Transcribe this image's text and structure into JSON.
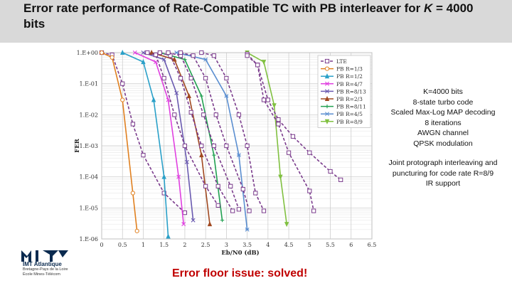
{
  "slide": {
    "title_prefix": "Error rate performance of Rate-Compatible TC with PB interleaver for ",
    "title_var": "K",
    "title_suffix": " = 4000 bits",
    "footer_note": "Error floor issue: solved!"
  },
  "info_block_1": [
    "K=4000 bits",
    "8-state turbo code",
    "Scaled Max-Log MAP decoding",
    "8 iterations",
    "AWGN channel",
    "QPSK modulation"
  ],
  "info_block_2": [
    "Joint protograph interleaving and",
    "puncturing for code rate R=8/9",
    "IR support"
  ],
  "logo": {
    "name": "IMT Atlantique",
    "subtitle_lines": [
      "Bretagne-Pays de la Loire",
      "École Mines-Télécom"
    ],
    "color": "#0a2a4f"
  },
  "chart_data": {
    "type": "line",
    "title": "",
    "xlabel": "Eb/N0 (dB)",
    "ylabel": "FER",
    "xlim": [
      0,
      6.5
    ],
    "ylim": [
      1e-06,
      1
    ],
    "yscale": "log",
    "grid": true,
    "legend_position": "top-right",
    "x_ticks": [
      0,
      0.5,
      1,
      1.5,
      2,
      2.5,
      3,
      3.5,
      4,
      4.5,
      5,
      5.5,
      6,
      6.5
    ],
    "x_tick_labels": [
      "0",
      "0.5",
      "1",
      "1.5",
      "2",
      "2.5",
      "3",
      "3.5",
      "4",
      "4.5",
      "5",
      "5.5",
      "6",
      "6.5"
    ],
    "y_ticks": [
      1,
      0.1,
      0.01,
      0.001,
      0.0001,
      1e-05,
      1e-06
    ],
    "y_tick_labels": [
      "1.E+00",
      "1.E-01",
      "1.E-02",
      "1.E-03",
      "1.E-04",
      "1.E-05",
      "1.E-06"
    ],
    "series": [
      {
        "name": "LTE",
        "color": "#7a3b8c",
        "marker": "square",
        "dash": true,
        "points": [
          [
            0,
            1
          ],
          [
            0.25,
            0.85
          ],
          [
            0.5,
            0.1
          ],
          [
            0.75,
            0.005
          ],
          [
            1,
            0.0005
          ],
          [
            1.5,
            3e-05
          ],
          [
            2,
            7e-06
          ]
        ]
      },
      {
        "name": "PB R=1/3",
        "color": "#e08020",
        "marker": "circle",
        "dash": false,
        "points": [
          [
            0,
            1
          ],
          [
            0.25,
            0.7
          ],
          [
            0.5,
            0.03
          ],
          [
            0.75,
            3e-05
          ],
          [
            0.85,
            1.8e-06
          ]
        ]
      },
      {
        "name": "PB R=1/2",
        "color": "#2aa0c8",
        "marker": "triangle",
        "dash": false,
        "points": [
          [
            0.5,
            1
          ],
          [
            1,
            0.5
          ],
          [
            1.25,
            0.03
          ],
          [
            1.5,
            0.0001
          ],
          [
            1.6,
            1.2e-06
          ]
        ]
      },
      {
        "name": "PB R=4/7",
        "color": "#e040e0",
        "marker": "x",
        "dash": false,
        "points": [
          [
            0.8,
            1
          ],
          [
            1.3,
            0.5
          ],
          [
            1.6,
            0.03
          ],
          [
            1.85,
            0.0001
          ],
          [
            1.97,
            3e-06
          ]
        ]
      },
      {
        "name": "PB R=8/13",
        "color": "#6a5ab0",
        "marker": "x",
        "dash": false,
        "points": [
          [
            1,
            1
          ],
          [
            1.5,
            0.6
          ],
          [
            1.8,
            0.05
          ],
          [
            2.05,
            0.0003
          ],
          [
            2.2,
            4e-06
          ]
        ]
      },
      {
        "name": "PB R=2/3",
        "color": "#a04820",
        "marker": "triangle",
        "dash": false,
        "points": [
          [
            1.2,
            1
          ],
          [
            1.75,
            0.6
          ],
          [
            2.1,
            0.04
          ],
          [
            2.4,
            0.0005
          ],
          [
            2.6,
            3e-06
          ]
        ]
      },
      {
        "name": "PB R=8/11",
        "color": "#20a050",
        "marker": "plus",
        "dash": false,
        "points": [
          [
            1.4,
            1
          ],
          [
            2,
            0.6
          ],
          [
            2.4,
            0.04
          ],
          [
            2.7,
            0.0005
          ],
          [
            2.9,
            4e-06
          ]
        ]
      },
      {
        "name": "PB R=4/5",
        "color": "#5a8ed0",
        "marker": "star",
        "dash": false,
        "points": [
          [
            1.8,
            1
          ],
          [
            2.5,
            0.6
          ],
          [
            3,
            0.04
          ],
          [
            3.3,
            0.0005
          ],
          [
            3.5,
            2e-06
          ]
        ]
      },
      {
        "name": "PB R=8/9",
        "color": "#80c040",
        "marker": "triangle-down",
        "dash": false,
        "points": [
          [
            3.5,
            1
          ],
          [
            3.9,
            0.5
          ],
          [
            4.15,
            0.02
          ],
          [
            4.3,
            0.0001
          ],
          [
            4.45,
            3e-06
          ]
        ]
      },
      {
        "name": "",
        "color": "#7a3b8c",
        "marker": "square",
        "dash": true,
        "points": [
          [
            1.1,
            1
          ],
          [
            1.3,
            0.85
          ],
          [
            1.5,
            0.15
          ],
          [
            1.75,
            0.01
          ],
          [
            2,
            0.001
          ],
          [
            2.5,
            5e-05
          ],
          [
            2.8,
            1.2e-05
          ]
        ]
      },
      {
        "name": "",
        "color": "#7a3b8c",
        "marker": "square",
        "dash": true,
        "points": [
          [
            1.4,
            1
          ],
          [
            1.65,
            0.8
          ],
          [
            1.9,
            0.15
          ],
          [
            2.15,
            0.012
          ],
          [
            2.4,
            0.001
          ],
          [
            2.8,
            5e-05
          ],
          [
            3.15,
            8e-06
          ]
        ]
      },
      {
        "name": "",
        "color": "#7a3b8c",
        "marker": "square",
        "dash": true,
        "points": [
          [
            1.6,
            1
          ],
          [
            1.9,
            0.8
          ],
          [
            2.15,
            0.15
          ],
          [
            2.45,
            0.01
          ],
          [
            2.7,
            0.001
          ],
          [
            3.1,
            5e-05
          ],
          [
            3.3,
            9e-06
          ]
        ]
      },
      {
        "name": "",
        "color": "#7a3b8c",
        "marker": "square",
        "dash": true,
        "points": [
          [
            1.9,
            1
          ],
          [
            2.2,
            0.8
          ],
          [
            2.5,
            0.15
          ],
          [
            2.75,
            0.01
          ],
          [
            3,
            0.001
          ],
          [
            3.4,
            4e-05
          ],
          [
            3.55,
            8e-06
          ]
        ]
      },
      {
        "name": "",
        "color": "#7a3b8c",
        "marker": "square",
        "dash": true,
        "points": [
          [
            2.4,
            1
          ],
          [
            2.7,
            0.8
          ],
          [
            3,
            0.15
          ],
          [
            3.3,
            0.01
          ],
          [
            3.5,
            0.001
          ],
          [
            3.7,
            3e-05
          ],
          [
            3.9,
            8e-06
          ]
        ]
      },
      {
        "name": "",
        "color": "#7a3b8c",
        "marker": "square",
        "dash": true,
        "points": [
          [
            3.5,
            0.9
          ],
          [
            3.75,
            0.4
          ],
          [
            4,
            0.03
          ],
          [
            4.25,
            0.007
          ],
          [
            4.6,
            0.002
          ],
          [
            5,
            0.0006
          ],
          [
            5.5,
            0.00015
          ],
          [
            5.75,
            8e-05
          ]
        ]
      },
      {
        "name": "",
        "color": "#7a3b8c",
        "marker": "square",
        "dash": true,
        "points": [
          [
            3.5,
            0.8
          ],
          [
            3.75,
            0.4
          ],
          [
            3.9,
            0.03
          ],
          [
            4.25,
            0.005
          ],
          [
            4.5,
            0.0006
          ],
          [
            5,
            3.5e-05
          ],
          [
            5.1,
            8e-06
          ]
        ]
      }
    ]
  }
}
